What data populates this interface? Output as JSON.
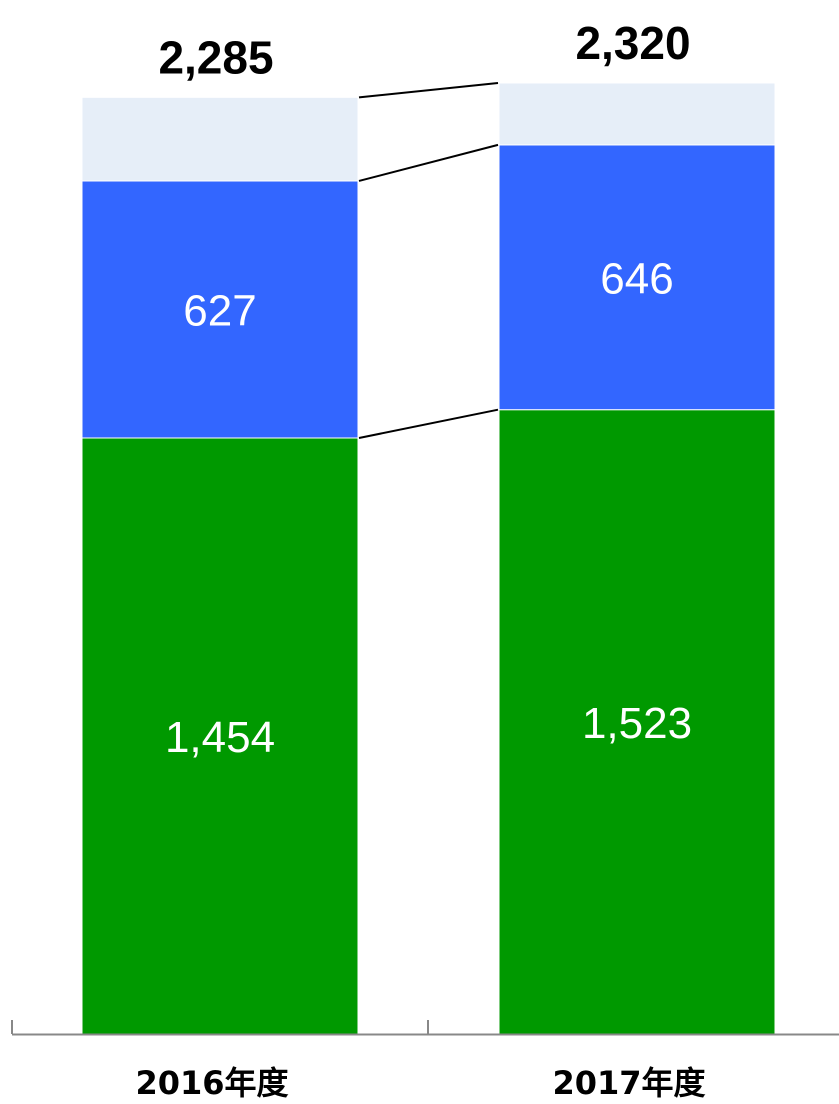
{
  "chart_data": {
    "type": "bar",
    "stacked": true,
    "categories": [
      "2016年度",
      "2017年度"
    ],
    "series": [
      {
        "color": "#009900",
        "values": [
          1454,
          1523
        ],
        "labels": [
          "1,454",
          "1,523"
        ]
      },
      {
        "color": "#3366FF",
        "values": [
          627,
          646
        ],
        "labels": [
          "627",
          "646"
        ]
      },
      {
        "color": "#E6EEF8",
        "values": [
          204,
          151
        ],
        "labels": [
          "",
          ""
        ]
      }
    ],
    "totals": [
      2285,
      2320
    ],
    "total_labels": [
      "2,285",
      "2,320"
    ],
    "ylim": [
      0,
      2320
    ],
    "grid": false,
    "legend": "none",
    "connector_lines": true,
    "axis_color": "#888888",
    "connector_color": "#000000"
  }
}
